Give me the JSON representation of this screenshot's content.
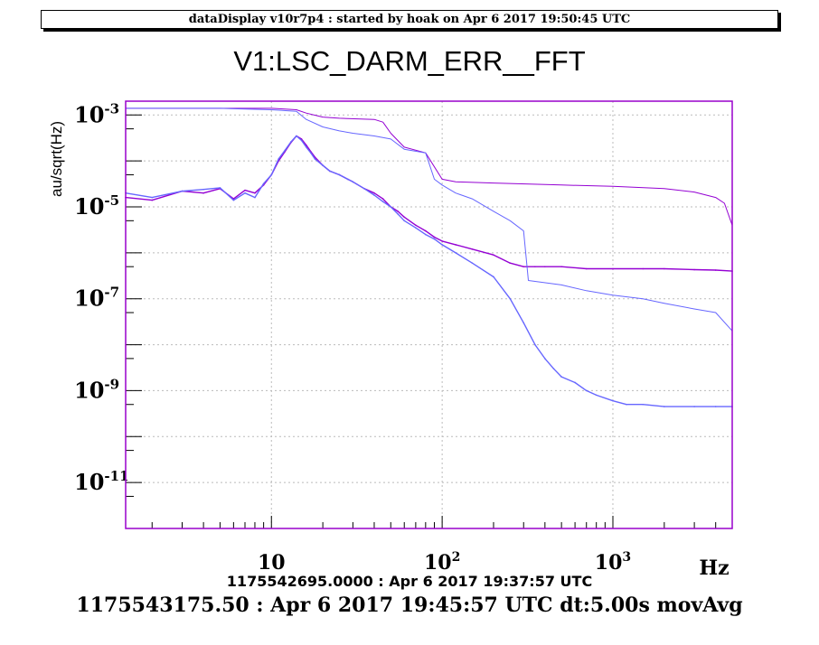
{
  "header": {
    "text": "dataDisplay v10r7p4 : started by hoak on Apr  6 2017 19:50:45 UTC"
  },
  "colors": {
    "reference": "#9400d3",
    "current": "#6666ff",
    "frame": "#9900cc",
    "grid": "#bbbbbb"
  },
  "chart_data": {
    "type": "line",
    "title": "V1:LSC_DARM_ERR__FFT",
    "xlabel": "Hz",
    "ylabel": "au/sqrt(Hz)",
    "xscale": "log",
    "yscale": "log",
    "xlim": [
      1.4,
      5000
    ],
    "ylim": [
      1e-12,
      0.002
    ],
    "grid": true,
    "x_ticks": [
      {
        "value": 10,
        "base": "10",
        "exp": ""
      },
      {
        "value": 100,
        "base": "10",
        "exp": "2"
      },
      {
        "value": 1000,
        "base": "10",
        "exp": "3"
      }
    ],
    "y_ticks": [
      {
        "value": 0.001,
        "base": "10",
        "exp": "-3"
      },
      {
        "value": 1e-05,
        "base": "10",
        "exp": "-5"
      },
      {
        "value": 1e-07,
        "base": "10",
        "exp": "-7"
      },
      {
        "value": 1e-09,
        "base": "10",
        "exp": "-9"
      },
      {
        "value": 1e-11,
        "base": "10",
        "exp": "-11"
      }
    ],
    "series": [
      {
        "role": "reference",
        "x": [
          1.4,
          2,
          3,
          4,
          5,
          6,
          7,
          8,
          9,
          10,
          11,
          12,
          13,
          14,
          15,
          16,
          17,
          18,
          20,
          22,
          25,
          28,
          30,
          35,
          40,
          45,
          50,
          55,
          60,
          70,
          80,
          90,
          100,
          120,
          150,
          200,
          250,
          300,
          350,
          400,
          500,
          700,
          1000,
          1500,
          2000,
          3000,
          4000,
          5000
        ],
        "y": [
          1.6e-05,
          1.4e-05,
          2.2e-05,
          2e-05,
          2.5e-05,
          1.5e-05,
          2.3e-05,
          2e-05,
          3e-05,
          5e-05,
          0.0001,
          0.00016,
          0.00025,
          0.00035,
          0.0003,
          0.00022,
          0.00016,
          0.00012,
          8e-05,
          6e-05,
          5e-05,
          4e-05,
          3.5e-05,
          2.5e-05,
          2e-05,
          1.5e-05,
          1e-05,
          8e-06,
          6e-06,
          4e-06,
          3e-06,
          2.2e-06,
          1.8e-06,
          1.5e-06,
          1.2e-06,
          9e-07,
          6e-07,
          5e-07,
          5e-07,
          5e-07,
          5e-07,
          4.5e-07,
          4.5e-07,
          4.5e-07,
          4.5e-07,
          4.3e-07,
          4.2e-07,
          4e-07
        ]
      },
      {
        "role": "current",
        "x": [
          1.4,
          2,
          3,
          4,
          5,
          6,
          7,
          8,
          9,
          10,
          11,
          12,
          13,
          14,
          15,
          16,
          17,
          18,
          20,
          22,
          25,
          28,
          30,
          35,
          40,
          45,
          50,
          55,
          60,
          70,
          80,
          90,
          100,
          120,
          150,
          200,
          250,
          300,
          350,
          400,
          450,
          500,
          600,
          700,
          800,
          1000,
          1200,
          1500,
          2000,
          3000,
          4000,
          5000
        ],
        "y": [
          2e-05,
          1.6e-05,
          2.2e-05,
          2.4e-05,
          2.6e-05,
          1.4e-05,
          2e-05,
          1.6e-05,
          3.2e-05,
          5e-05,
          0.00011,
          0.00017,
          0.00026,
          0.00035,
          0.00028,
          0.0002,
          0.00015,
          0.00011,
          8e-05,
          6e-05,
          5e-05,
          4e-05,
          3.5e-05,
          2.5e-05,
          1.8e-05,
          1.3e-05,
          1e-05,
          7e-06,
          5e-06,
          3.5e-06,
          2.5e-06,
          2e-06,
          1.5e-06,
          1e-06,
          6e-07,
          3e-07,
          1e-07,
          3e-08,
          1e-08,
          5e-09,
          3e-09,
          2e-09,
          1.5e-09,
          1e-09,
          8e-10,
          6e-10,
          5e-10,
          5e-10,
          4.5e-10,
          4.5e-10,
          4.5e-10,
          4.5e-10
        ]
      },
      {
        "role": "reference-cumulative",
        "x": [
          1.4,
          5,
          10,
          14,
          16,
          20,
          25,
          40,
          45,
          50,
          60,
          80,
          100,
          120,
          200,
          500,
          1000,
          2000,
          3000,
          4000,
          4500,
          5000
        ],
        "y": [
          0.0014,
          0.0014,
          0.0014,
          0.0013,
          0.0011,
          0.0009,
          0.00085,
          0.0008,
          0.0007,
          0.0004,
          0.0002,
          0.00015,
          4e-05,
          3.5e-05,
          3.3e-05,
          3e-05,
          2.8e-05,
          2.5e-05,
          2.1e-05,
          1.6e-05,
          1.2e-05,
          4e-06
        ]
      },
      {
        "role": "current-cumulative",
        "x": [
          1.4,
          5,
          10,
          14,
          16,
          20,
          25,
          30,
          40,
          50,
          60,
          80,
          90,
          100,
          120,
          150,
          200,
          250,
          300,
          320,
          500,
          700,
          1000,
          1500,
          2000,
          3000,
          4000,
          5000
        ],
        "y": [
          0.0014,
          0.0014,
          0.0013,
          0.0012,
          0.0008,
          0.00055,
          0.00045,
          0.0004,
          0.00035,
          0.0003,
          0.00018,
          0.00015,
          4e-05,
          3e-05,
          2e-05,
          1.5e-05,
          8e-06,
          5e-06,
          3e-06,
          2.5e-07,
          2e-07,
          1.5e-07,
          1.2e-07,
          1e-07,
          8e-08,
          6e-08,
          5e-08,
          2e-08
        ]
      }
    ]
  },
  "timestamps": {
    "reference": "1175542695.0000 : Apr  6 2017 19:37:57 UTC",
    "current": "1175543175.50 : Apr  6 2017 19:45:57 UTC dt:5.00s movAvg"
  }
}
